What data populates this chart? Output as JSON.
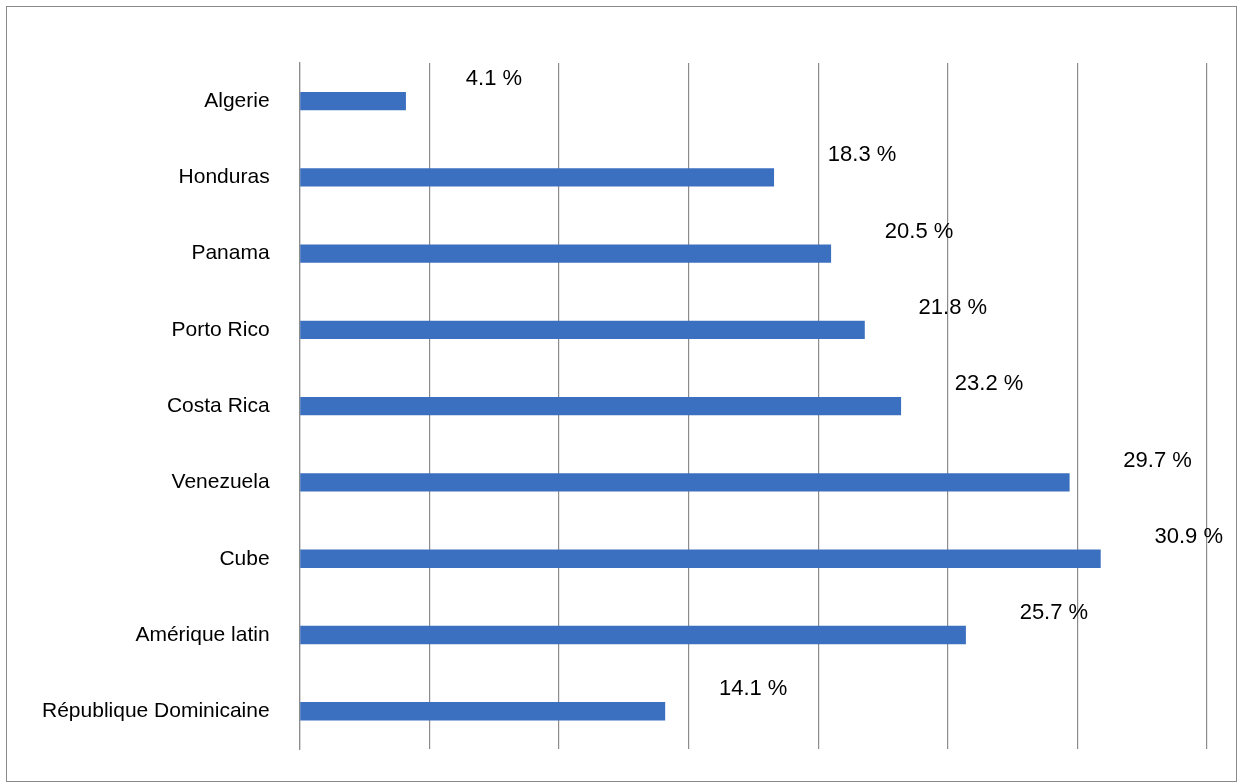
{
  "chart_data": {
    "type": "bar",
    "orientation": "horizontal",
    "categories": [
      "Algerie",
      "Honduras",
      "Panama",
      "Porto Rico",
      "Costa Rica",
      "Venezuela",
      "Cube",
      "Amérique latin",
      "République Dominicaine"
    ],
    "values": [
      4.1,
      18.3,
      20.5,
      21.8,
      23.2,
      29.7,
      30.9,
      25.7,
      14.1
    ],
    "value_labels": [
      "4.1 %",
      "18.3 %",
      "20.5 %",
      "21.8 %",
      "23.2 %",
      "29.7 %",
      "30.9 %",
      "25.7 %",
      "14.1 %"
    ],
    "color": "#3b6fbf",
    "xlim": [
      0,
      35
    ],
    "xticks": [
      {
        "value": 0,
        "label": null
      },
      {
        "value": 5,
        "label": null
      },
      {
        "value": 10,
        "label": null
      },
      {
        "value": 15,
        "label": null
      },
      {
        "value": 20,
        "label": null
      },
      {
        "value": 25,
        "label": null
      },
      {
        "value": 30,
        "label": null
      },
      {
        "value": 35,
        "label": null
      }
    ],
    "grid": "x",
    "tick_labels": "y",
    "legend": false
  }
}
